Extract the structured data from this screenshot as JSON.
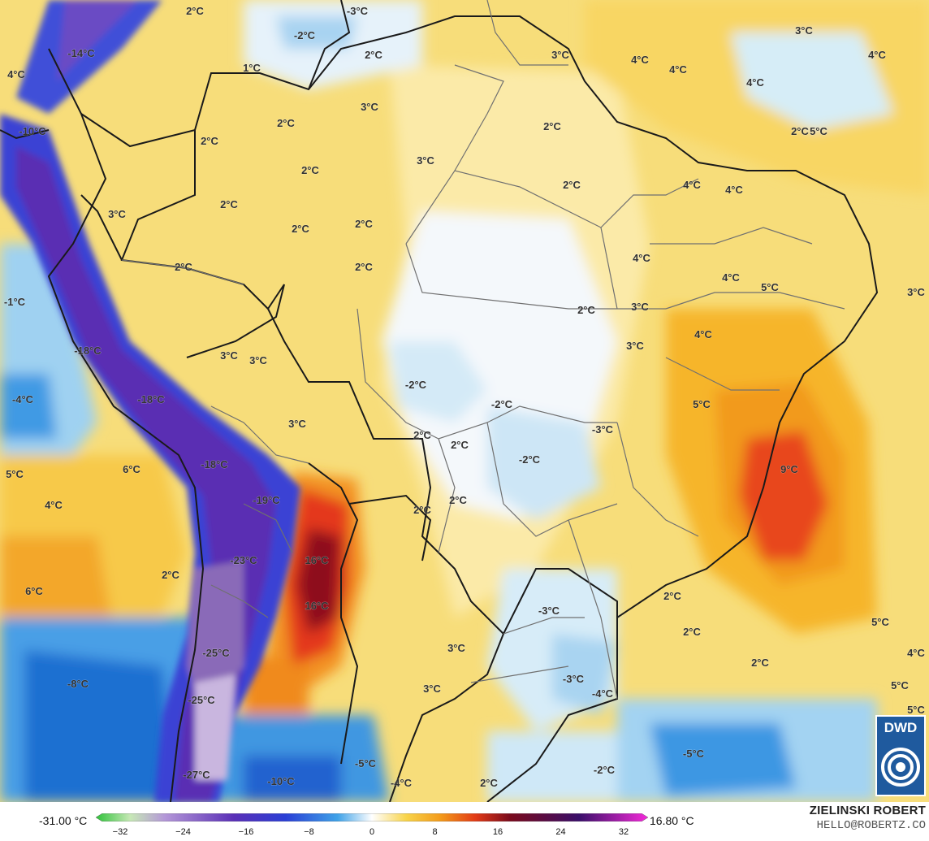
{
  "map": {
    "colors": {
      "ocean_cold": "#1f6fd1",
      "cold": "#66b6ea",
      "cool": "#cfe9f7",
      "neutral": "#ffffff",
      "warm_light": "#fbe9a8",
      "warm": "#f6d35b",
      "warmer": "#f5a623",
      "hot": "#e8421b",
      "very_hot": "#8b0a1d",
      "andes_deep": "#5b2db5",
      "andes": "#3a39d8",
      "border": "#1a1a1a",
      "state_border": "#707070"
    },
    "labels": [
      {
        "text": "2°C"
      },
      {
        "text": "-3°C"
      },
      {
        "text": "-2°C"
      },
      {
        "text": "-14°C"
      },
      {
        "text": "3°C"
      },
      {
        "text": "2°C"
      },
      {
        "text": "1°C"
      },
      {
        "text": "3°C"
      },
      {
        "text": "4°C"
      },
      {
        "text": "4°C"
      },
      {
        "text": "4°C"
      },
      {
        "text": "4°C"
      },
      {
        "text": "4°C"
      },
      {
        "text": "3°C"
      },
      {
        "text": "-10°C"
      },
      {
        "text": "2°C"
      },
      {
        "text": "2°C"
      },
      {
        "text": "2°C"
      },
      {
        "text": "5°C"
      },
      {
        "text": "2°C"
      },
      {
        "text": "3°C"
      },
      {
        "text": "2°C"
      },
      {
        "text": "2°C"
      },
      {
        "text": "4°C"
      },
      {
        "text": "3°C"
      },
      {
        "text": "2°C"
      },
      {
        "text": "2°C"
      },
      {
        "text": "2°C"
      },
      {
        "text": "2°C"
      },
      {
        "text": "2°C"
      },
      {
        "text": "4°C"
      },
      {
        "text": "4°C"
      },
      {
        "text": "5°C"
      },
      {
        "text": "3°C"
      },
      {
        "text": "-1°C"
      },
      {
        "text": "3°C"
      },
      {
        "text": "4°C"
      },
      {
        "text": "2°C"
      },
      {
        "text": "-18°C"
      },
      {
        "text": "3°C"
      },
      {
        "text": "3°C"
      },
      {
        "text": "4°C"
      },
      {
        "text": "3°C"
      },
      {
        "text": "-4°C"
      },
      {
        "text": "-18°C"
      },
      {
        "text": "-2°C"
      },
      {
        "text": "-2°C"
      },
      {
        "text": "5°C"
      },
      {
        "text": "3°C"
      },
      {
        "text": "2°C"
      },
      {
        "text": "-3°C"
      },
      {
        "text": "2°C"
      },
      {
        "text": "-18°C"
      },
      {
        "text": "-2°C"
      },
      {
        "text": "5°C"
      },
      {
        "text": "6°C"
      },
      {
        "text": "9°C"
      },
      {
        "text": "4°C"
      },
      {
        "text": "-19°C"
      },
      {
        "text": "2°C"
      },
      {
        "text": "2°C"
      },
      {
        "text": "16°C"
      },
      {
        "text": "-23°C"
      },
      {
        "text": "2°C"
      },
      {
        "text": "6°C"
      },
      {
        "text": "16°C"
      },
      {
        "text": "2°C"
      },
      {
        "text": "-3°C"
      },
      {
        "text": "2°C"
      },
      {
        "text": "5°C"
      },
      {
        "text": "-25°C"
      },
      {
        "text": "3°C"
      },
      {
        "text": "4°C"
      },
      {
        "text": "-8°C"
      },
      {
        "text": "3°C"
      },
      {
        "text": "-3°C"
      },
      {
        "text": "2°C"
      },
      {
        "text": "5°C"
      },
      {
        "text": "-25°C"
      },
      {
        "text": "-4°C"
      },
      {
        "text": "5°C"
      },
      {
        "text": "-5°C"
      },
      {
        "text": "-5°C"
      },
      {
        "text": "-2°C"
      },
      {
        "text": "-27°C"
      },
      {
        "text": "-10°C"
      },
      {
        "text": "-4°C"
      },
      {
        "text": "2°C"
      }
    ]
  },
  "legend": {
    "min_label": "-31.00 °C",
    "max_label": "16.80 °C",
    "ticks": [
      "−32",
      "−24",
      "−16",
      "−8",
      "0",
      "8",
      "16",
      "24",
      "32"
    ],
    "stops": [
      {
        "value": -32,
        "color": "#2fc23a"
      },
      {
        "value": -28,
        "color": "#c7e8b6"
      },
      {
        "value": -24,
        "color": "#b497d8"
      },
      {
        "value": -16,
        "color": "#5a2fb7"
      },
      {
        "value": -10,
        "color": "#2a3fd6"
      },
      {
        "value": -4,
        "color": "#3fa2e8"
      },
      {
        "value": 0,
        "color": "#ffffff"
      },
      {
        "value": 4,
        "color": "#f8d44a"
      },
      {
        "value": 8,
        "color": "#f39a1a"
      },
      {
        "value": 12,
        "color": "#e23a16"
      },
      {
        "value": 16,
        "color": "#7a0a1c"
      },
      {
        "value": 24,
        "color": "#3a0f6a"
      },
      {
        "value": 32,
        "color": "#f42ad9"
      }
    ]
  },
  "credit": {
    "name": "ZIELINSKI ROBERT",
    "email": "HELLO@ROBERTZ.CO"
  },
  "logo": {
    "text": "DWD"
  }
}
